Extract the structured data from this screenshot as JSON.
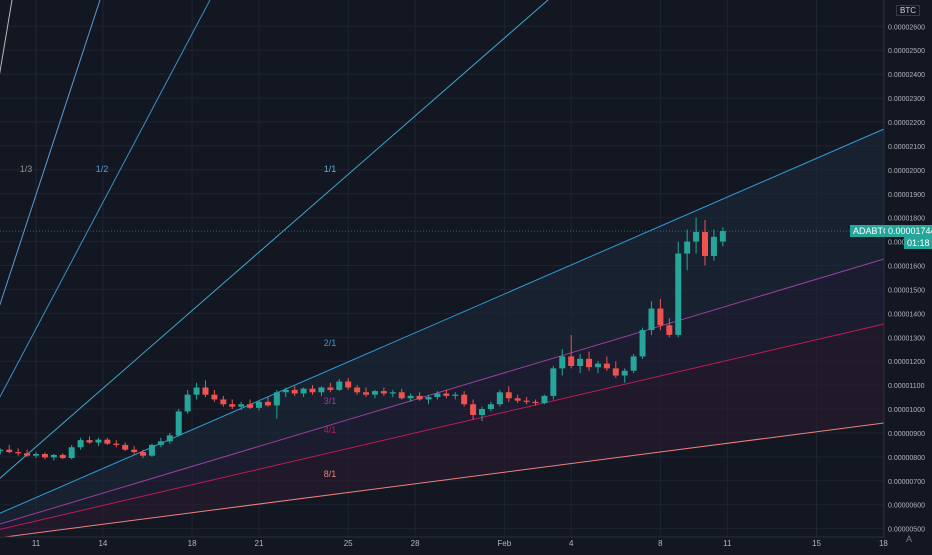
{
  "chart_data": {
    "type": "candlestick",
    "symbol": "ADABTC",
    "axis_unit": "BTC",
    "last_price_label": "0.00001744",
    "countdown_label": "01:18",
    "y_ticks": [
      "0.00000500",
      "0.00000600",
      "0.00000700",
      "0.00000800",
      "0.00000900",
      "0.00001000",
      "0.00001100",
      "0.00001200",
      "0.00001300",
      "0.00001400",
      "0.00001500",
      "0.00001600",
      "0.00001700",
      "0.00001800",
      "0.00001900",
      "0.00002000",
      "0.00002100",
      "0.00002200",
      "0.00002300",
      "0.00002400",
      "0.00002500",
      "0.00002600"
    ],
    "ylim": [
      4.65e-06,
      2.71e-05
    ],
    "x_ticks": [
      "11",
      "14",
      "18",
      "21",
      "25",
      "28",
      "Feb",
      "4",
      "8",
      "11",
      "15",
      "18"
    ],
    "x_tick_days": [
      0,
      3,
      7,
      10,
      14,
      17,
      21,
      24,
      28,
      31,
      35,
      38
    ],
    "fan_labels": [
      "1/3",
      "1/2",
      "1/1",
      "2/1",
      "3/1",
      "4/1",
      "8/1"
    ],
    "candles": [
      [
        -1.6,
        8.25e-06,
        8.35e-06,
        8.1e-06,
        8.3e-06
      ],
      [
        -1.2,
        8.3e-06,
        8.5e-06,
        8.15e-06,
        8.2e-06
      ],
      [
        -0.8,
        8.2e-06,
        8.35e-06,
        8.05e-06,
        8.15e-06
      ],
      [
        -0.4,
        8.15e-06,
        8.3e-06,
        8e-06,
        8.05e-06
      ],
      [
        0.0,
        8.05e-06,
        8.2e-06,
        7.95e-06,
        8.12e-06
      ],
      [
        0.4,
        8.12e-06,
        8.18e-06,
        7.9e-06,
        7.98e-06
      ],
      [
        0.8,
        7.98e-06,
        8.12e-06,
        7.85e-06,
        8.08e-06
      ],
      [
        1.2,
        8.08e-06,
        8.15e-06,
        7.9e-06,
        7.95e-06
      ],
      [
        1.6,
        7.95e-06,
        8.5e-06,
        7.9e-06,
        8.4e-06
      ],
      [
        2.0,
        8.4e-06,
        8.8e-06,
        8.3e-06,
        8.7e-06
      ],
      [
        2.4,
        8.7e-06,
        8.85e-06,
        8.55e-06,
        8.6e-06
      ],
      [
        2.8,
        8.6e-06,
        8.8e-06,
        8.45e-06,
        8.72e-06
      ],
      [
        3.2,
        8.72e-06,
        8.8e-06,
        8.5e-06,
        8.55e-06
      ],
      [
        3.6,
        8.55e-06,
        8.7e-06,
        8.4e-06,
        8.5e-06
      ],
      [
        4.0,
        8.5e-06,
        8.6e-06,
        8.25e-06,
        8.3e-06
      ],
      [
        4.4,
        8.3e-06,
        8.45e-06,
        8.1e-06,
        8.2e-06
      ],
      [
        4.8,
        8.2e-06,
        8.3e-06,
        7.95e-06,
        8.05e-06
      ],
      [
        5.2,
        8.05e-06,
        8.55e-06,
        8e-06,
        8.5e-06
      ],
      [
        5.6,
        8.5e-06,
        8.8e-06,
        8.4e-06,
        8.65e-06
      ],
      [
        6.0,
        8.65e-06,
        9e-06,
        8.55e-06,
        8.9e-06
      ],
      [
        6.4,
        8.9e-06,
        1e-05,
        8.85e-06,
        9.9e-06
      ],
      [
        6.8,
        9.9e-06,
        1.08e-05,
        9.8e-06,
        1.06e-05
      ],
      [
        7.2,
        1.06e-05,
        1.11e-05,
        1.04e-05,
        1.09e-05
      ],
      [
        7.6,
        1.09e-05,
        1.12e-05,
        1.05e-05,
        1.06e-05
      ],
      [
        8.0,
        1.06e-05,
        1.08e-05,
        1.03e-05,
        1.04e-05
      ],
      [
        8.4,
        1.04e-05,
        1.055e-05,
        1.01e-05,
        1.02e-05
      ],
      [
        8.8,
        1.02e-05,
        1.04e-05,
        1e-05,
        1.01e-05
      ],
      [
        9.2,
        1.01e-05,
        1.03e-05,
        9.95e-06,
        1.02e-05
      ],
      [
        9.6,
        1.02e-05,
        1.04e-05,
        1e-05,
        1.005e-05
      ],
      [
        10.0,
        1.005e-05,
        1.035e-05,
        9.95e-06,
        1.03e-05
      ],
      [
        10.4,
        1.03e-05,
        1.05e-05,
        1.01e-05,
        1.015e-05
      ],
      [
        10.8,
        1.015e-05,
        1.08e-05,
        9.6e-06,
        1.07e-05
      ],
      [
        11.2,
        1.07e-05,
        1.09e-05,
        1.05e-05,
        1.08e-05
      ],
      [
        11.6,
        1.08e-05,
        1.095e-05,
        1.055e-05,
        1.065e-05
      ],
      [
        12.0,
        1.065e-05,
        1.09e-05,
        1.05e-05,
        1.085e-05
      ],
      [
        12.4,
        1.085e-05,
        1.1e-05,
        1.06e-05,
        1.07e-05
      ],
      [
        12.8,
        1.07e-05,
        1.095e-05,
        1.055e-05,
        1.09e-05
      ],
      [
        13.2,
        1.09e-05,
        1.11e-05,
        1.07e-05,
        1.08e-05
      ],
      [
        13.6,
        1.08e-05,
        1.125e-05,
        1.075e-05,
        1.115e-05
      ],
      [
        14.0,
        1.115e-05,
        1.13e-05,
        1.08e-05,
        1.09e-05
      ],
      [
        14.4,
        1.09e-05,
        1.1e-05,
        1.06e-05,
        1.07e-05
      ],
      [
        14.8,
        1.07e-05,
        1.09e-05,
        1.05e-05,
        1.06e-05
      ],
      [
        15.2,
        1.06e-05,
        1.08e-05,
        1.045e-05,
        1.075e-05
      ],
      [
        15.6,
        1.075e-05,
        1.09e-05,
        1.055e-05,
        1.065e-05
      ],
      [
        16.0,
        1.065e-05,
        1.08e-05,
        1.05e-05,
        1.07e-05
      ],
      [
        16.4,
        1.07e-05,
        1.085e-05,
        1.04e-05,
        1.045e-05
      ],
      [
        16.8,
        1.045e-05,
        1.065e-05,
        1.03e-05,
        1.055e-05
      ],
      [
        17.2,
        1.055e-05,
        1.07e-05,
        1.035e-05,
        1.04e-05
      ],
      [
        17.6,
        1.04e-05,
        1.06e-05,
        1.02e-05,
        1.05e-05
      ],
      [
        18.0,
        1.05e-05,
        1.075e-05,
        1.04e-05,
        1.065e-05
      ],
      [
        18.4,
        1.065e-05,
        1.08e-05,
        1.045e-05,
        1.055e-05
      ],
      [
        18.8,
        1.055e-05,
        1.07e-05,
        1.04e-05,
        1.06e-05
      ],
      [
        19.2,
        1.06e-05,
        1.075e-05,
        1.01e-05,
        1.02e-05
      ],
      [
        19.6,
        1.02e-05,
        1.04e-05,
        9.55e-06,
        9.75e-06
      ],
      [
        20.0,
        9.75e-06,
        1.01e-05,
        9.5e-06,
        1e-05
      ],
      [
        20.4,
        1e-05,
        1.03e-05,
        9.9e-06,
        1.02e-05
      ],
      [
        20.8,
        1.02e-05,
        1.08e-05,
        1.01e-05,
        1.07e-05
      ],
      [
        21.2,
        1.07e-05,
        1.095e-05,
        1.03e-05,
        1.045e-05
      ],
      [
        21.6,
        1.045e-05,
        1.06e-05,
        1.025e-05,
        1.035e-05
      ],
      [
        22.0,
        1.035e-05,
        1.05e-05,
        1.02e-05,
        1.03e-05
      ],
      [
        22.4,
        1.03e-05,
        1.04e-05,
        1.015e-05,
        1.025e-05
      ],
      [
        22.8,
        1.025e-05,
        1.06e-05,
        1.02e-05,
        1.055e-05
      ],
      [
        23.2,
        1.055e-05,
        1.18e-05,
        1.04e-05,
        1.17e-05
      ],
      [
        23.6,
        1.17e-05,
        1.25e-05,
        1.14e-05,
        1.22e-05
      ],
      [
        24.0,
        1.22e-05,
        1.31e-05,
        1.17e-05,
        1.18e-05
      ],
      [
        24.4,
        1.18e-05,
        1.23e-05,
        1.15e-05,
        1.21e-05
      ],
      [
        24.8,
        1.21e-05,
        1.24e-05,
        1.16e-05,
        1.175e-05
      ],
      [
        25.2,
        1.175e-05,
        1.2e-05,
        1.15e-05,
        1.19e-05
      ],
      [
        25.6,
        1.19e-05,
        1.22e-05,
        1.16e-05,
        1.17e-05
      ],
      [
        26.0,
        1.17e-05,
        1.2e-05,
        1.13e-05,
        1.14e-05
      ],
      [
        26.4,
        1.14e-05,
        1.17e-05,
        1.11e-05,
        1.16e-05
      ],
      [
        26.8,
        1.16e-05,
        1.23e-05,
        1.15e-05,
        1.22e-05
      ],
      [
        27.2,
        1.22e-05,
        1.34e-05,
        1.21e-05,
        1.33e-05
      ],
      [
        27.6,
        1.33e-05,
        1.45e-05,
        1.31e-05,
        1.42e-05
      ],
      [
        28.0,
        1.42e-05,
        1.46e-05,
        1.33e-05,
        1.35e-05
      ],
      [
        28.4,
        1.35e-05,
        1.38e-05,
        1.3e-05,
        1.31e-05
      ],
      [
        28.8,
        1.31e-05,
        1.7e-05,
        1.3e-05,
        1.65e-05
      ],
      [
        29.2,
        1.65e-05,
        1.75e-05,
        1.58e-05,
        1.7e-05
      ],
      [
        29.6,
        1.7e-05,
        1.8e-05,
        1.65e-05,
        1.74e-05
      ],
      [
        30.0,
        1.74e-05,
        1.79e-05,
        1.6e-05,
        1.64e-05
      ],
      [
        30.4,
        1.64e-05,
        1.75e-05,
        1.62e-05,
        1.72e-05
      ],
      [
        30.8,
        1.7e-05,
        1.76e-05,
        1.68e-05,
        1.744e-05
      ]
    ]
  }
}
